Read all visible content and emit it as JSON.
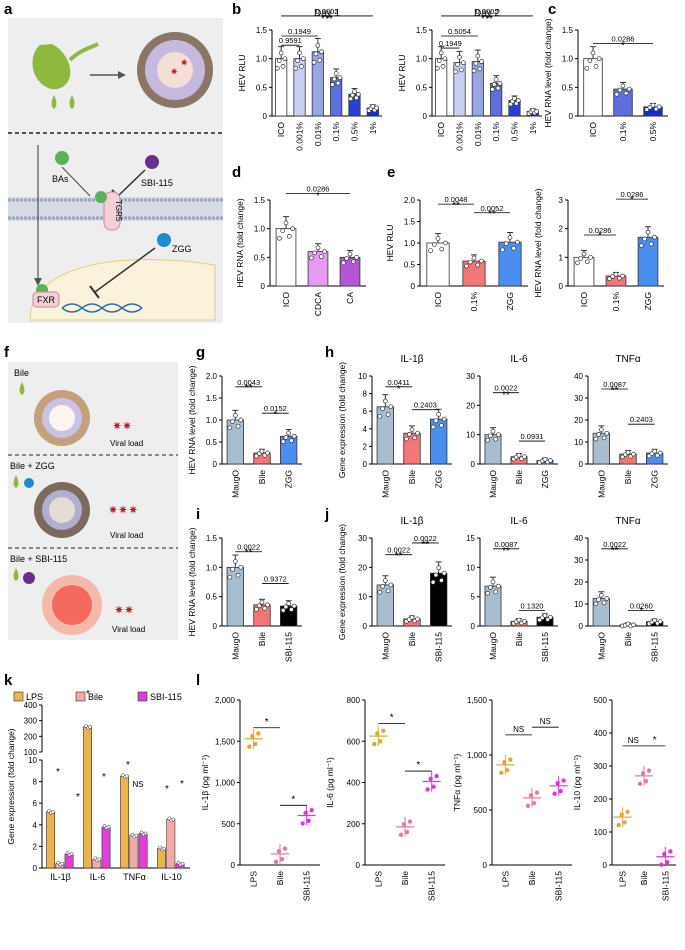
{
  "panel_letters": {
    "a": "a",
    "b": "b",
    "c": "c",
    "d": "d",
    "e": "e",
    "f": "f",
    "g": "g",
    "h": "h",
    "i": "i",
    "j": "j",
    "k": "k",
    "l": "l"
  },
  "schematic_a": {
    "bas": "BAs",
    "sbi": "SBI-115",
    "tgr5": "TGR5",
    "zgg": "ZGG",
    "fxr": "FXR"
  },
  "schematic_f": {
    "row1": "Bile",
    "row2": "Bile + ZGG",
    "row3": "Bile + SBI-115",
    "viral": "Viral load"
  },
  "colors": {
    "ico": "#ffffff",
    "blue1": "#c9cff0",
    "blue2": "#9aa5e6",
    "blue3": "#5d6fde",
    "blue4": "#2a3ed6",
    "blue5": "#1530c8",
    "cdca": "#e59bf1",
    "ca": "#b557d4",
    "red": "#f47676",
    "zgg": "#4a8ff0",
    "maugo": "#a9bdd0",
    "lps": "#eab54a",
    "bile_k": "#f4a8a8",
    "sbi_k": "#e43ed4",
    "dot_lps": "#e2a73a",
    "dot_bile": "#e77a9a",
    "dot_sbi": "#d93ad1"
  },
  "chart_data": [
    {
      "id": "b1",
      "type": "bar",
      "title": "Day 1",
      "ylabel": "HEV RLU",
      "ylim": [
        0,
        1.5
      ],
      "yticks": [
        "0",
        "0.5",
        "1.0",
        "1.5"
      ],
      "categories": [
        "ICO",
        "0.001%",
        "0.01%",
        "0.1%",
        "0.5%",
        "1%"
      ],
      "values": [
        1.0,
        1.0,
        1.12,
        0.67,
        0.38,
        0.14
      ],
      "colors": [
        "ico",
        "blue1",
        "blue2",
        "blue3",
        "blue4",
        "blue5"
      ],
      "brackets": [
        {
          "label": "0.9591",
          "from": 0,
          "to": 1,
          "y": 1.27
        },
        {
          "label": "0.1949",
          "from": 0,
          "to": 2,
          "y": 1.43
        },
        {
          "label": "0.0002",
          "from": 0,
          "to": 5,
          "y": 1.78
        },
        {
          "label": "***",
          "from": 0,
          "to": 5,
          "y": 1.64
        }
      ]
    },
    {
      "id": "b2",
      "type": "bar",
      "title": "Day 2",
      "ylabel": "HEV RLU",
      "ylim": [
        0,
        1.5
      ],
      "yticks": [
        "0",
        "0.5",
        "1.0",
        "1.5"
      ],
      "categories": [
        "ICO",
        "0.001%",
        "0.01%",
        "0.1%",
        "0.5%",
        "1%"
      ],
      "values": [
        1.0,
        0.93,
        0.95,
        0.57,
        0.27,
        0.08
      ],
      "colors": [
        "ico",
        "blue1",
        "blue2",
        "blue3",
        "blue4",
        "blue5"
      ],
      "brackets": [
        {
          "label": "0.1949",
          "from": 0,
          "to": 1,
          "y": 1.22
        },
        {
          "label": "0.5054",
          "from": 0,
          "to": 2,
          "y": 1.43
        },
        {
          "label": "0.0002",
          "from": 0,
          "to": 5,
          "y": 1.78
        },
        {
          "label": "***",
          "from": 0,
          "to": 5,
          "y": 1.64
        }
      ]
    },
    {
      "id": "c",
      "type": "bar",
      "ylabel": "HEV RNA level (fold change)",
      "ylim": [
        0,
        1.5
      ],
      "yticks": [
        "0",
        "0.5",
        "1.0",
        "1.5"
      ],
      "categories": [
        "ICO",
        "0.1%",
        "0.5%"
      ],
      "values": [
        1.0,
        0.47,
        0.16
      ],
      "colors": [
        "ico",
        "blue3",
        "blue5"
      ],
      "brackets": [
        {
          "label": "0.0286",
          "from": 0,
          "to": 2,
          "y": 1.3
        },
        {
          "label": "*",
          "from": 0,
          "to": 2,
          "y": 1.18
        }
      ]
    },
    {
      "id": "d",
      "type": "bar",
      "ylabel": "HEV RNA (fold change)",
      "ylim": [
        0,
        1.5
      ],
      "yticks": [
        "0",
        "0.5",
        "1.0",
        "1.5"
      ],
      "categories": [
        "ICO",
        "CDCA",
        "CA"
      ],
      "values": [
        1.0,
        0.6,
        0.5
      ],
      "colors": [
        "ico",
        "cdca",
        "ca"
      ],
      "brackets": [
        {
          "label": "0.0286",
          "from": 0,
          "to": 2,
          "y": 1.65
        },
        {
          "label": "*",
          "from": 0,
          "to": 2,
          "y": 1.52
        }
      ]
    },
    {
      "id": "e1",
      "type": "bar",
      "ylabel": "HEV RLU",
      "ylim": [
        0,
        2.0
      ],
      "yticks": [
        "0",
        "0.5",
        "1.0",
        "1.5",
        "2.0"
      ],
      "categories": [
        "ICO",
        "0.1%",
        "ZGG"
      ],
      "values": [
        1.0,
        0.58,
        1.02
      ],
      "colors": [
        "ico",
        "red",
        "zgg"
      ],
      "brackets": [
        {
          "label": "0.0048",
          "from": 0,
          "to": 1,
          "y": 1.95
        },
        {
          "label": "**",
          "from": 0,
          "to": 1,
          "y": 1.8
        },
        {
          "label": "0.0052",
          "from": 1,
          "to": 2,
          "y": 1.75
        },
        {
          "label": "**",
          "from": 1,
          "to": 2,
          "y": 1.6
        }
      ]
    },
    {
      "id": "e2",
      "type": "bar",
      "ylabel": "HEV RNA level (fold change)",
      "ylim": [
        0,
        3
      ],
      "yticks": [
        "0",
        "1",
        "2",
        "3"
      ],
      "categories": [
        "ICO",
        "0.1%",
        "ZGG"
      ],
      "values": [
        1.0,
        0.35,
        1.7
      ],
      "colors": [
        "ico",
        "red",
        "zgg"
      ],
      "brackets": [
        {
          "label": "0.0286",
          "from": 0,
          "to": 1,
          "y": 1.85
        },
        {
          "label": "*",
          "from": 0,
          "to": 1,
          "y": 1.65
        },
        {
          "label": "0.0286",
          "from": 1,
          "to": 2,
          "y": 3.1
        },
        {
          "label": "*",
          "from": 1,
          "to": 2,
          "y": 2.9
        }
      ]
    },
    {
      "id": "g",
      "type": "bar",
      "ylabel": "HEV RNA level (fold change)",
      "ylim": [
        0,
        2.0
      ],
      "yticks": [
        "0",
        "0.5",
        "1.0",
        "1.5",
        "2.0"
      ],
      "categories": [
        "MaugO",
        "Bile",
        "ZGG"
      ],
      "values": [
        1.0,
        0.25,
        0.63
      ],
      "colors": [
        "maugo",
        "red",
        "zgg"
      ],
      "brackets": [
        {
          "label": "0.0043",
          "from": 0,
          "to": 1,
          "y": 1.8
        },
        {
          "label": "**",
          "from": 0,
          "to": 1,
          "y": 1.66
        },
        {
          "label": "0.0152",
          "from": 1,
          "to": 2,
          "y": 1.2
        },
        {
          "label": "*",
          "from": 1,
          "to": 2,
          "y": 1.06
        }
      ]
    },
    {
      "id": "h1",
      "type": "bar",
      "title": "IL-1β",
      "ylabel": "Gene expression (fold change)",
      "ylim": [
        0,
        10
      ],
      "yticks": [
        "0",
        "2",
        "4",
        "6",
        "8",
        "10"
      ],
      "categories": [
        "MaugO",
        "Bile",
        "ZGG"
      ],
      "values": [
        6.5,
        3.5,
        5.1
      ],
      "colors": [
        "maugo",
        "red",
        "zgg"
      ],
      "brackets": [
        {
          "label": "0.0411",
          "from": 0,
          "to": 1,
          "y": 9.0
        },
        {
          "label": "*",
          "from": 0,
          "to": 1,
          "y": 8.2
        },
        {
          "label": "0.2403",
          "from": 1,
          "to": 2,
          "y": 6.4
        }
      ]
    },
    {
      "id": "h2",
      "type": "bar",
      "title": "IL-6",
      "ylim": [
        0,
        30
      ],
      "yticks": [
        "0",
        "10",
        "20",
        "30"
      ],
      "categories": [
        "MaugO",
        "Bile",
        "ZGG"
      ],
      "values": [
        10,
        2.5,
        1.2
      ],
      "colors": [
        "maugo",
        "red",
        "zgg"
      ],
      "brackets": [
        {
          "label": "0.0022",
          "from": 0,
          "to": 1,
          "y": 25
        },
        {
          "label": "**",
          "from": 0,
          "to": 1,
          "y": 22.5
        },
        {
          "label": "0.0931",
          "from": 1,
          "to": 2,
          "y": 8.5
        }
      ]
    },
    {
      "id": "h3",
      "type": "bar",
      "title": "TNFα",
      "ylim": [
        0,
        40
      ],
      "yticks": [
        "0",
        "10",
        "20",
        "30",
        "40"
      ],
      "categories": [
        "MaugO",
        "Bile",
        "ZGG"
      ],
      "values": [
        14,
        4.5,
        5
      ],
      "colors": [
        "maugo",
        "red",
        "zgg"
      ],
      "brackets": [
        {
          "label": "0.0087",
          "from": 0,
          "to": 1,
          "y": 35
        },
        {
          "label": "**",
          "from": 0,
          "to": 1,
          "y": 32
        },
        {
          "label": "0.2403",
          "from": 1,
          "to": 2,
          "y": 19
        }
      ]
    },
    {
      "id": "i",
      "type": "bar",
      "ylabel": "HEV RNA level (fold change)",
      "ylim": [
        0,
        1.5
      ],
      "yticks": [
        "0",
        "0.5",
        "1.0",
        "1.5"
      ],
      "categories": [
        "MaugO",
        "Bile",
        "SBI-115"
      ],
      "values": [
        1.0,
        0.36,
        0.34
      ],
      "colors": [
        "maugo",
        "red",
        "sbi"
      ],
      "brackets": [
        {
          "label": "0.0022",
          "from": 0,
          "to": 1,
          "y": 1.3
        },
        {
          "label": "**",
          "from": 0,
          "to": 1,
          "y": 1.2
        },
        {
          "label": "0.9372",
          "from": 1,
          "to": 2,
          "y": 0.76
        }
      ]
    },
    {
      "id": "j1",
      "type": "bar",
      "title": "IL-1β",
      "ylabel": "Gene expression (fold change)",
      "ylim": [
        0,
        30
      ],
      "yticks": [
        "0",
        "10",
        "20",
        "30"
      ],
      "categories": [
        "MaugO",
        "Bile",
        "SBI-115"
      ],
      "values": [
        14,
        2.4,
        18
      ],
      "colors": [
        "maugo",
        "red",
        "sbi"
      ],
      "brackets": [
        {
          "label": "0.0022",
          "from": 0,
          "to": 1,
          "y": 25
        },
        {
          "label": "**",
          "from": 0,
          "to": 1,
          "y": 22.8
        },
        {
          "label": "0.0022",
          "from": 1,
          "to": 2,
          "y": 29
        },
        {
          "label": "**",
          "from": 1,
          "to": 2,
          "y": 26.8
        }
      ]
    },
    {
      "id": "j2",
      "type": "bar",
      "title": "IL-6",
      "ylim": [
        0,
        15
      ],
      "yticks": [
        "0",
        "5",
        "10",
        "15"
      ],
      "categories": [
        "MaugO",
        "Bile",
        "SBI-115"
      ],
      "values": [
        6.8,
        0.8,
        1.5
      ],
      "colors": [
        "maugo",
        "red",
        "sbi"
      ],
      "brackets": [
        {
          "label": "0.0087",
          "from": 0,
          "to": 1,
          "y": 13.5
        },
        {
          "label": "**",
          "from": 0,
          "to": 1,
          "y": 12.3
        },
        {
          "label": "0.1320",
          "from": 1,
          "to": 2,
          "y": 3.0
        }
      ]
    },
    {
      "id": "j3",
      "type": "bar",
      "title": "TNFα",
      "ylim": [
        0,
        40
      ],
      "yticks": [
        "0",
        "10",
        "20",
        "30",
        "40"
      ],
      "categories": [
        "MaugO",
        "Bile",
        "SBI-115"
      ],
      "values": [
        12.5,
        0.5,
        2
      ],
      "colors": [
        "maugo",
        "red",
        "sbi"
      ],
      "brackets": [
        {
          "label": "0.0022",
          "from": 0,
          "to": 1,
          "y": 36
        },
        {
          "label": "**",
          "from": 0,
          "to": 1,
          "y": 33
        },
        {
          "label": "0.0260",
          "from": 1,
          "to": 2,
          "y": 8
        },
        {
          "label": "*",
          "from": 1,
          "to": 2,
          "y": 5.5
        }
      ]
    },
    {
      "id": "k",
      "type": "bar",
      "ylabel": "Gene expression (fold change)",
      "legend": [
        {
          "name": "LPS",
          "color": "lps"
        },
        {
          "name": "Bile",
          "color": "bile_k"
        },
        {
          "name": "SBI-115",
          "color": "sbi_k"
        }
      ],
      "categories": [
        "IL-1β",
        "IL-6",
        "TNFα",
        "IL-10"
      ],
      "series": [
        {
          "name": "LPS",
          "values": [
            5.2,
            260,
            8.5,
            1.8
          ]
        },
        {
          "name": "Bile",
          "values": [
            0.4,
            0.8,
            3,
            4.5
          ]
        },
        {
          "name": "SBI-115",
          "values": [
            1.3,
            3.8,
            3.2,
            0.4
          ]
        }
      ],
      "yticks_low": [
        "0",
        "2",
        "4",
        "6",
        "8",
        "10"
      ],
      "yticks_high": [
        "100",
        "200",
        "300",
        "400"
      ],
      "annotations": [
        "*",
        "*",
        "*",
        "*",
        "*",
        "NS",
        "*",
        "*"
      ]
    },
    {
      "id": "l1",
      "type": "scatter",
      "ylabel": "IL-1β (pg ml⁻¹)",
      "ylim": [
        0,
        2000
      ],
      "yticks": [
        "0",
        "500",
        "1,000",
        "1,500",
        "2,000"
      ],
      "categories": [
        "LPS",
        "Bile",
        "SBI-115"
      ],
      "values": [
        1530,
        135,
        600
      ],
      "colors": [
        "dot_lps",
        "dot_bile",
        "dot_sbi"
      ],
      "brackets": [
        {
          "label": "*",
          "from": 0,
          "to": 1,
          "y": 1700
        },
        {
          "label": "*",
          "from": 1,
          "to": 2,
          "y": 760
        }
      ]
    },
    {
      "id": "l2",
      "type": "scatter",
      "ylabel": "IL-6 (pg ml⁻¹)",
      "ylim": [
        0,
        800
      ],
      "yticks": [
        "0",
        "200",
        "400",
        "600",
        "800"
      ],
      "categories": [
        "LPS",
        "Bile",
        "SBI-115"
      ],
      "values": [
        625,
        185,
        405
      ],
      "colors": [
        "dot_lps",
        "dot_bile",
        "dot_sbi"
      ],
      "brackets": [
        {
          "label": "*",
          "from": 0,
          "to": 1,
          "y": 700
        },
        {
          "label": "*",
          "from": 1,
          "to": 2,
          "y": 470
        }
      ]
    },
    {
      "id": "l3",
      "type": "scatter",
      "ylabel": "TNFα (pg ml⁻¹)",
      "ylim": [
        0,
        1500
      ],
      "yticks": [
        "0",
        "500",
        "1,000",
        "1,500"
      ],
      "categories": [
        "LPS",
        "Bile",
        "SBI-115"
      ],
      "values": [
        910,
        610,
        720
      ],
      "colors": [
        "dot_lps",
        "dot_bile",
        "dot_sbi"
      ],
      "brackets": [
        {
          "label": "NS",
          "from": 0,
          "to": 1,
          "y": 1210
        },
        {
          "label": "NS",
          "from": 1,
          "to": 2,
          "y": 1280
        }
      ]
    },
    {
      "id": "l4",
      "type": "scatter",
      "ylabel": "IL-10 (pg ml⁻¹)",
      "ylim": [
        0,
        500
      ],
      "yticks": [
        "0",
        "100",
        "200",
        "300",
        "400",
        "500"
      ],
      "categories": [
        "LPS",
        "Bile",
        "SBI-115"
      ],
      "values": [
        145,
        270,
        25
      ],
      "colors": [
        "dot_lps",
        "dot_bile",
        "dot_sbi"
      ],
      "brackets": [
        {
          "label": "NS",
          "from": 0,
          "to": 1,
          "y": 370
        },
        {
          "label": "*",
          "from": 1,
          "to": 2,
          "y": 370
        }
      ]
    }
  ]
}
